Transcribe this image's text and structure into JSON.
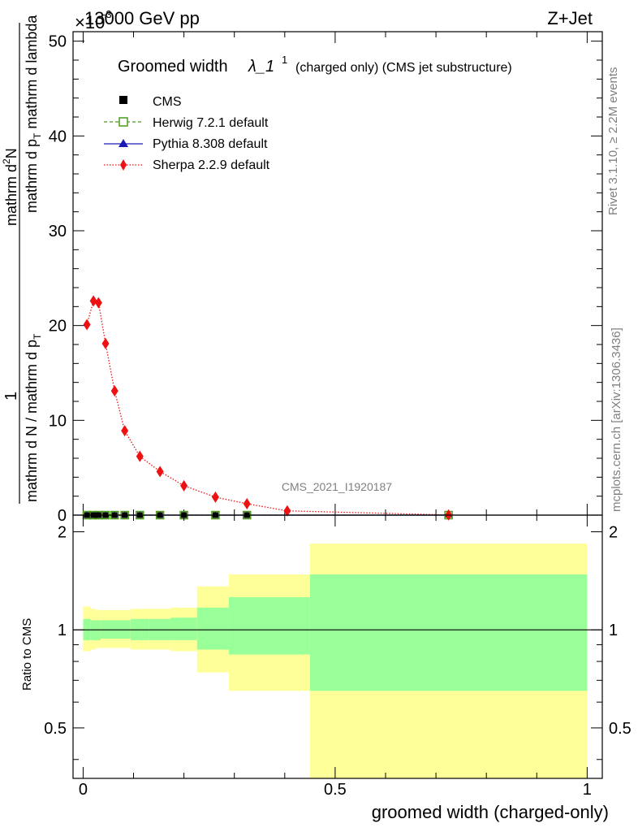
{
  "header": {
    "left": "13000 GeV pp",
    "right": "Z+Jet",
    "scale_factor": "×10",
    "scale_exponent": "-3"
  },
  "side_text": {
    "rivet": "Rivet 3.1.10, ≥ 2.2M events",
    "mcplots": "mcplots.cern.ch [arXiv:1306.3436]"
  },
  "watermark": "CMS_2021_I1920187",
  "colors": {
    "herwig": "#4d9b1c",
    "pythia": "#1a1ab3",
    "sherpa": "#ee1111",
    "band_outer": "#ffff99",
    "band_inner": "#99ff99"
  },
  "chart_data": [
    {
      "type": "line",
      "title": "Groomed width",
      "title_symbol": "λ_1",
      "title_superscript": "1",
      "title_note": "(charged only) (CMS jet substructure)",
      "ylabel_numerator": "1",
      "ylabel_num_main": "mathrm d",
      "ylabel_num_sup": "2",
      "ylabel_num_tail": "N",
      "ylabel_den_part1": "mathrm d p",
      "ylabel_den_sub": "T",
      "ylabel_den_part2": " mathrm d lambda",
      "ylabel_norm_part1": "mathrm d N / mathrm d p",
      "ylabel_norm_sub": "T",
      "xlim": [
        -0.02,
        1.03
      ],
      "ylim": [
        0,
        51
      ],
      "yticks": [
        "0",
        "10",
        "20",
        "30",
        "40",
        "50"
      ],
      "legend_placement": "top-left",
      "series": [
        {
          "name": "CMS",
          "x": [
            0.0075,
            0.0205,
            0.0305,
            0.0445,
            0.0625,
            0.0825,
            0.1125,
            0.1525,
            0.2,
            0.2625,
            0.325
          ],
          "y": [
            0,
            0,
            0,
            0,
            0,
            0,
            0,
            0,
            0,
            0,
            0
          ]
        },
        {
          "name": "Herwig 7.2.1 default",
          "x": [
            0.0075,
            0.0205,
            0.0305,
            0.0445,
            0.0625,
            0.0825,
            0.1125,
            0.1525,
            0.2,
            0.2625,
            0.325,
            0.725
          ],
          "y": [
            0,
            0,
            0,
            0,
            0,
            0,
            0,
            0,
            0,
            0,
            0,
            0
          ]
        },
        {
          "name": "Pythia 8.308 default",
          "x": [
            0.0075,
            0.0205,
            0.0305,
            0.0445,
            0.0625,
            0.0825,
            0.1125,
            0.1525,
            0.2,
            0.2625,
            0.325,
            0.725
          ],
          "y": [
            0,
            0,
            0,
            0,
            0,
            0,
            0,
            0,
            0,
            0,
            0,
            0
          ]
        },
        {
          "name": "Sherpa 2.2.9 default",
          "x": [
            0.0075,
            0.0205,
            0.0305,
            0.0445,
            0.0625,
            0.0825,
            0.1125,
            0.1525,
            0.2,
            0.2625,
            0.325,
            0.405,
            0.725
          ],
          "y": [
            20.1,
            22.6,
            22.4,
            18.1,
            13.1,
            8.9,
            6.2,
            4.6,
            3.1,
            1.9,
            1.2,
            0.45,
            0.02
          ]
        }
      ]
    },
    {
      "type": "area",
      "ylabel": "Ratio to CMS",
      "xlabel": "groomed width (charged-only)",
      "xlim": [
        -0.02,
        1.03
      ],
      "ylim": [
        0.35,
        2.25
      ],
      "yticks": [
        "0.5",
        "1",
        "2"
      ],
      "xticks": [
        "0",
        "0.5",
        "1"
      ],
      "reference": 1,
      "bands": [
        {
          "x0": 0.0,
          "x1": 0.015,
          "outer": [
            0.86,
            1.18
          ],
          "inner": [
            0.93,
            1.08
          ]
        },
        {
          "x0": 0.015,
          "x1": 0.026,
          "outer": [
            0.87,
            1.16
          ],
          "inner": [
            0.93,
            1.07
          ]
        },
        {
          "x0": 0.026,
          "x1": 0.035,
          "outer": [
            0.88,
            1.15
          ],
          "inner": [
            0.93,
            1.07
          ]
        },
        {
          "x0": 0.035,
          "x1": 0.054,
          "outer": [
            0.88,
            1.15
          ],
          "inner": [
            0.94,
            1.07
          ]
        },
        {
          "x0": 0.054,
          "x1": 0.071,
          "outer": [
            0.88,
            1.15
          ],
          "inner": [
            0.94,
            1.07
          ]
        },
        {
          "x0": 0.071,
          "x1": 0.094,
          "outer": [
            0.88,
            1.15
          ],
          "inner": [
            0.94,
            1.07
          ]
        },
        {
          "x0": 0.094,
          "x1": 0.131,
          "outer": [
            0.87,
            1.16
          ],
          "inner": [
            0.93,
            1.08
          ]
        },
        {
          "x0": 0.131,
          "x1": 0.174,
          "outer": [
            0.87,
            1.16
          ],
          "inner": [
            0.93,
            1.08
          ]
        },
        {
          "x0": 0.174,
          "x1": 0.226,
          "outer": [
            0.86,
            1.17
          ],
          "inner": [
            0.93,
            1.09
          ]
        },
        {
          "x0": 0.226,
          "x1": 0.289,
          "outer": [
            0.74,
            1.36
          ],
          "inner": [
            0.87,
            1.17
          ]
        },
        {
          "x0": 0.289,
          "x1": 0.45,
          "outer": [
            0.65,
            1.48
          ],
          "inner": [
            0.84,
            1.26
          ]
        },
        {
          "x0": 0.45,
          "x1": 1.0,
          "outer": [
            0.35,
            1.84
          ],
          "inner": [
            0.65,
            1.48
          ]
        }
      ]
    }
  ]
}
